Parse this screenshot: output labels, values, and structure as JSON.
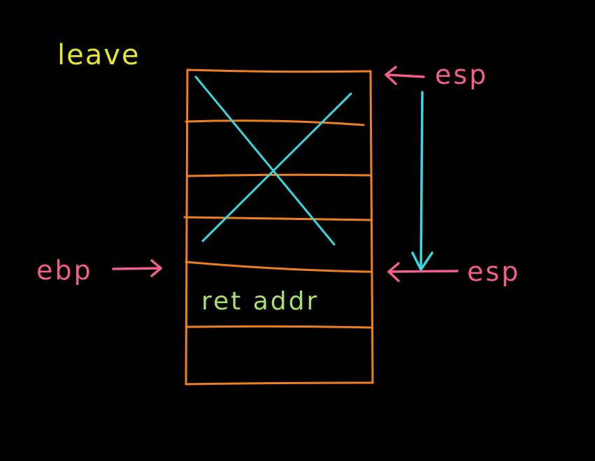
{
  "title": "leave",
  "labels": {
    "esp_top": "esp",
    "esp_bottom": "esp",
    "ebp": "ebp"
  },
  "stack": {
    "ret_cell": "ret addr",
    "cleared_cells": 4
  },
  "colors": {
    "background": "#000000",
    "title": "#e6e632",
    "frame": "#f0801e",
    "cross": "#3cd7dc",
    "pointer": "#f0608a",
    "ret_text": "#a8e070"
  }
}
